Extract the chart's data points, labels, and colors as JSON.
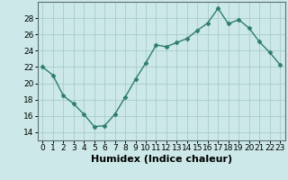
{
  "x": [
    0,
    1,
    2,
    3,
    4,
    5,
    6,
    7,
    8,
    9,
    10,
    11,
    12,
    13,
    14,
    15,
    16,
    17,
    18,
    19,
    20,
    21,
    22,
    23
  ],
  "y": [
    22,
    21,
    18.5,
    17.5,
    16.2,
    14.7,
    14.8,
    16.2,
    18.3,
    20.5,
    22.5,
    24.7,
    24.5,
    25.0,
    25.5,
    26.5,
    27.4,
    29.2,
    27.3,
    27.8,
    26.8,
    25.1,
    23.8,
    22.3
  ],
  "line_color": "#2e7d6e",
  "marker": "D",
  "marker_size": 2.5,
  "bg_color": "#cce8e8",
  "grid_color": "#b0d4d4",
  "xlabel": "Humidex (Indice chaleur)",
  "ylim": [
    13,
    30
  ],
  "yticks": [
    14,
    16,
    18,
    20,
    22,
    24,
    26,
    28
  ],
  "xlim": [
    -0.5,
    23.5
  ],
  "xticks": [
    0,
    1,
    2,
    3,
    4,
    5,
    6,
    7,
    8,
    9,
    10,
    11,
    12,
    13,
    14,
    15,
    16,
    17,
    18,
    19,
    20,
    21,
    22,
    23
  ],
  "tick_fontsize": 6.5,
  "label_fontsize": 8
}
